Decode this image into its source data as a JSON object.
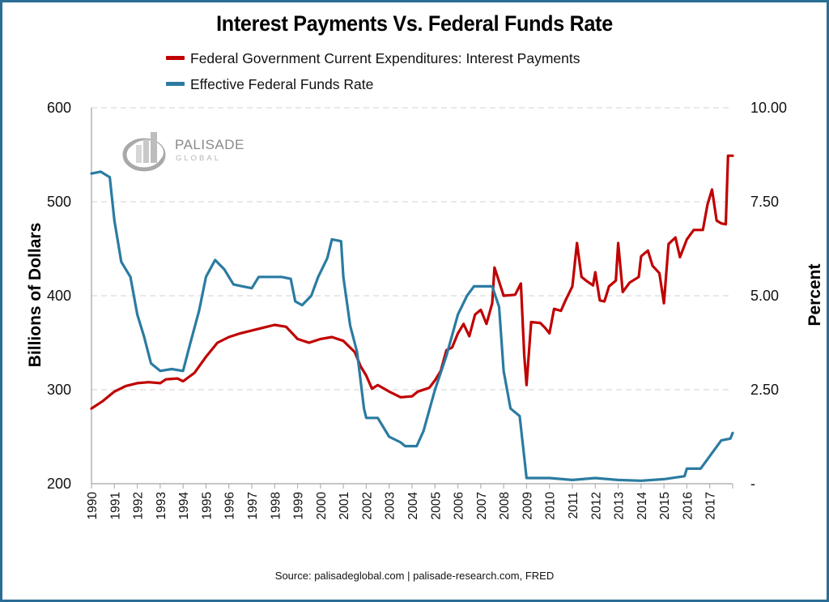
{
  "chart_data": {
    "type": "line",
    "title": "Interest Payments Vs. Federal Funds Rate",
    "ylabel": "Billions of Dollars",
    "y2label": "Percent",
    "xlabel": "",
    "ylim": [
      200,
      600
    ],
    "y2lim": [
      0,
      10
    ],
    "xlim": [
      1990,
      2018
    ],
    "yticks": [
      "200",
      "300",
      "400",
      "500",
      "600"
    ],
    "y2ticks": [
      "-",
      "2.50",
      "5.00",
      "7.50",
      "10.00"
    ],
    "xticks": [
      "1990",
      "1991",
      "1992",
      "1993",
      "1994",
      "1995",
      "1996",
      "1997",
      "1998",
      "1999",
      "2000",
      "2001",
      "2002",
      "2003",
      "2004",
      "2005",
      "2006",
      "2007",
      "2008",
      "2009",
      "2010",
      "2011",
      "2012",
      "2013",
      "2014",
      "2015",
      "2016",
      "2017"
    ],
    "grid": "horizontal-dashed",
    "legend_position": "top-center",
    "source": "Source: palisadeglobal.com | palisade-research.com, FRED",
    "watermark": {
      "name": "PALISADE",
      "sub": "GLOBAL"
    },
    "series": [
      {
        "name": "Federal Government Current Expenditures: Interest Payments",
        "axis": "left",
        "color": "#c00000",
        "x": [
          1990,
          1990.5,
          1991,
          1991.5,
          1992,
          1992.5,
          1993,
          1993.25,
          1993.75,
          1994,
          1994.5,
          1995,
          1995.5,
          1996,
          1996.5,
          1997,
          1997.5,
          1998,
          1998.5,
          1999,
          1999.5,
          2000,
          2000.5,
          2001,
          2001.5,
          2001.75,
          2002,
          2002.25,
          2002.5,
          2003,
          2003.5,
          2004,
          2004.25,
          2004.75,
          2005,
          2005.25,
          2005.5,
          2005.75,
          2006,
          2006.25,
          2006.5,
          2006.75,
          2007,
          2007.25,
          2007.5,
          2007.6,
          2007.8,
          2008,
          2008.5,
          2008.75,
          2008.9,
          2009,
          2009.2,
          2009.6,
          2009.8,
          2010,
          2010.2,
          2010.5,
          2010.7,
          2011,
          2011.2,
          2011.4,
          2011.6,
          2011.9,
          2012,
          2012.2,
          2012.4,
          2012.6,
          2012.9,
          2013,
          2013.2,
          2013.5,
          2013.9,
          2014,
          2014.3,
          2014.5,
          2014.8,
          2015,
          2015.2,
          2015.5,
          2015.7,
          2016,
          2016.3,
          2016.7,
          2016.9,
          2017.1,
          2017.3,
          2017.5,
          2017.7,
          2017.8,
          2018
        ],
        "values": [
          280,
          288,
          298,
          304,
          307,
          308,
          307,
          311,
          312,
          309,
          318,
          335,
          350,
          356,
          360,
          363,
          366,
          369,
          367,
          354,
          350,
          354,
          356,
          352,
          340,
          325,
          315,
          301,
          305,
          298,
          292,
          293,
          298,
          302,
          310,
          320,
          342,
          345,
          360,
          370,
          357,
          380,
          385,
          370,
          392,
          430,
          415,
          400,
          401,
          413,
          336,
          305,
          372,
          371,
          366,
          360,
          386,
          384,
          395,
          410,
          456,
          420,
          416,
          411,
          425,
          395,
          394,
          410,
          416,
          456,
          404,
          414,
          420,
          442,
          448,
          432,
          424,
          392,
          455,
          462,
          441,
          460,
          470,
          470,
          497,
          513,
          480,
          477,
          476,
          549,
          549
        ]
      },
      {
        "name": "Effective Federal Funds Rate",
        "axis": "right",
        "color": "#2b7ba1",
        "x": [
          1990,
          1990.4,
          1990.8,
          1991,
          1991.3,
          1991.7,
          1992,
          1992.3,
          1992.6,
          1993,
          1993.5,
          1994,
          1994.3,
          1994.7,
          1995,
          1995.4,
          1995.8,
          1996.2,
          1996.6,
          1997,
          1997.3,
          1997.8,
          1998.3,
          1998.7,
          1998.9,
          1999.2,
          1999.6,
          1999.9,
          2000.3,
          2000.5,
          2000.9,
          2001,
          2001.3,
          2001.6,
          2001.9,
          2002,
          2002.5,
          2003,
          2003.5,
          2003.7,
          2004.2,
          2004.5,
          2005,
          2005.5,
          2006,
          2006.4,
          2006.7,
          2007.5,
          2007.8,
          2008,
          2008.3,
          2008.7,
          2008.9,
          2009,
          2010,
          2011,
          2012,
          2013,
          2014,
          2015,
          2015.9,
          2016,
          2016.6,
          2016.9,
          2017.2,
          2017.5,
          2017.9,
          2018
        ],
        "values": [
          8.25,
          8.3,
          8.15,
          7.0,
          5.9,
          5.5,
          4.5,
          3.9,
          3.2,
          3.0,
          3.05,
          3.0,
          3.7,
          4.6,
          5.5,
          5.95,
          5.7,
          5.3,
          5.25,
          5.2,
          5.5,
          5.5,
          5.5,
          5.45,
          4.85,
          4.75,
          5.0,
          5.5,
          6.0,
          6.5,
          6.45,
          5.5,
          4.2,
          3.5,
          2.0,
          1.75,
          1.75,
          1.25,
          1.1,
          1.0,
          1.0,
          1.4,
          2.5,
          3.4,
          4.5,
          5.0,
          5.25,
          5.25,
          4.7,
          3.0,
          2.0,
          1.8,
          0.7,
          0.15,
          0.15,
          0.1,
          0.15,
          0.1,
          0.08,
          0.12,
          0.2,
          0.4,
          0.4,
          0.65,
          0.9,
          1.15,
          1.2,
          1.35
        ]
      }
    ]
  }
}
